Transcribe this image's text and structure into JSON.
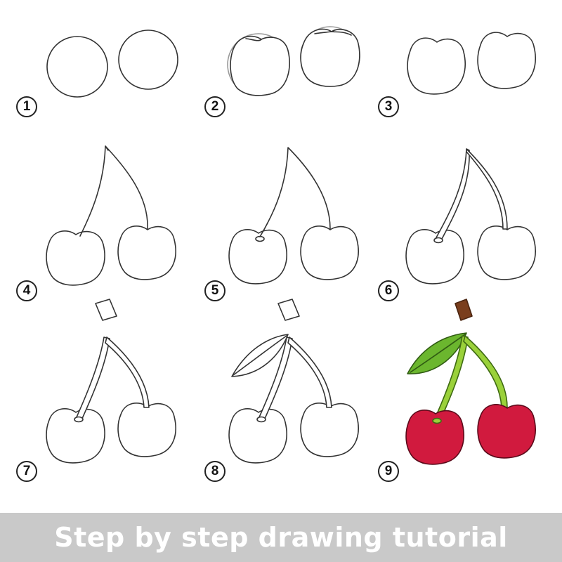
{
  "steps": [
    {
      "number": "1"
    },
    {
      "number": "2"
    },
    {
      "number": "3"
    },
    {
      "number": "4"
    },
    {
      "number": "5"
    },
    {
      "number": "6"
    },
    {
      "number": "7"
    },
    {
      "number": "8"
    },
    {
      "number": "9"
    }
  ],
  "banner": {
    "title": "Step by step drawing tutorial"
  },
  "colors": {
    "outline": "#333333",
    "cherry_red": "#d11a3e",
    "leaf_green": "#6bb62e",
    "stem_green": "#9ad13a",
    "stem_brown": "#7a3e1d",
    "banner_bg": "#c9c9c9"
  }
}
